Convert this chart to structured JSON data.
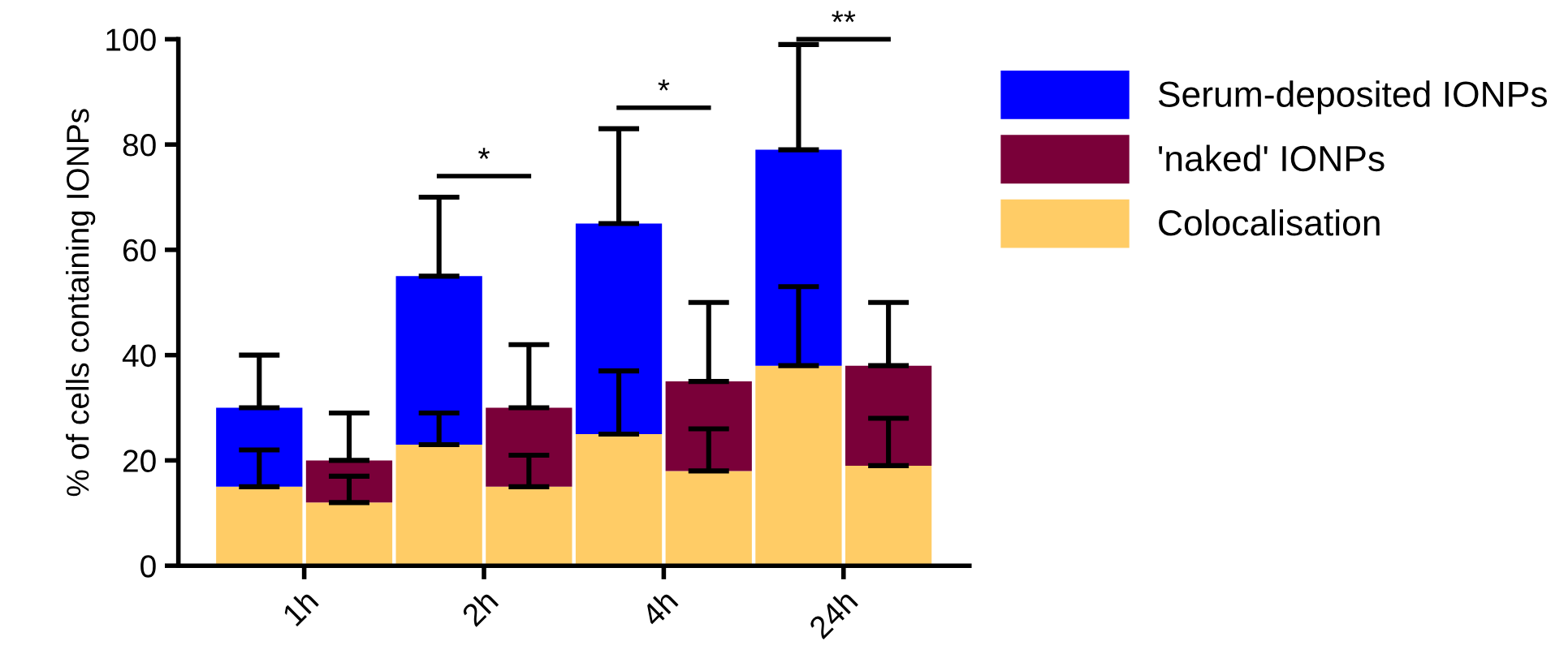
{
  "chart_data": {
    "type": "bar",
    "stacked": true,
    "ylabel": "% of cells containing IONPs",
    "categories": [
      "1h",
      null,
      "2h",
      null,
      "4h",
      null,
      "24h",
      null
    ],
    "ylim": [
      0,
      100
    ],
    "yticks": [
      0,
      20,
      40,
      60,
      80,
      100
    ],
    "legend": "top right",
    "grid": false,
    "series": [
      {
        "name": "Colocalisation",
        "color": "#ffcc66",
        "values": [
          15,
          12,
          23,
          15,
          25,
          18,
          38,
          19
        ],
        "errors": [
          [
            15,
            22
          ],
          [
            12,
            17
          ],
          [
            23,
            29
          ],
          [
            15,
            21
          ],
          [
            25,
            37
          ],
          [
            18,
            26
          ],
          [
            38,
            53
          ],
          [
            19,
            28
          ]
        ]
      },
      {
        "name": "Serum-deposited IONPs",
        "color": "#0000ff",
        "values": [
          15,
          null,
          32,
          null,
          40,
          null,
          41,
          null
        ],
        "errors": [
          [
            30,
            40
          ],
          null,
          [
            55,
            70
          ],
          null,
          [
            65,
            83
          ],
          null,
          [
            79,
            99
          ],
          null
        ]
      },
      {
        "name": "'naked' IONPs",
        "color": "#7a0039",
        "values": [
          null,
          8,
          null,
          15,
          null,
          17,
          null,
          19
        ],
        "errors": [
          null,
          [
            20,
            29
          ],
          null,
          [
            30,
            42
          ],
          null,
          [
            35,
            50
          ],
          null,
          [
            38,
            50
          ]
        ]
      }
    ],
    "annotations": [
      "*",
      "*",
      "**"
    ]
  }
}
